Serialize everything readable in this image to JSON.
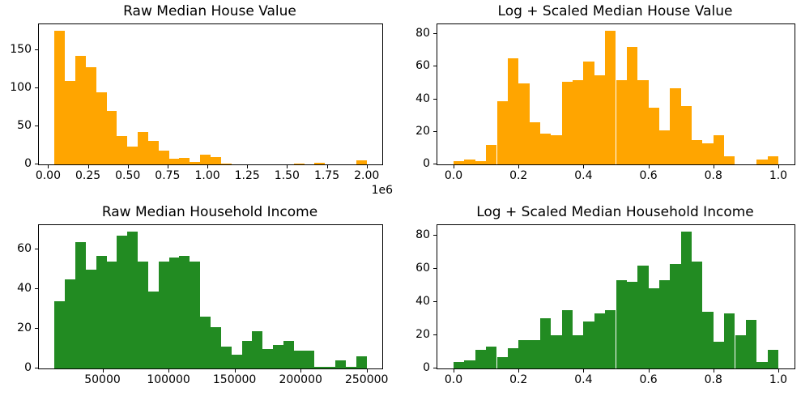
{
  "chart_data": [
    {
      "type": "histogram",
      "title": "Raw Median House Value",
      "color": "#ffa500",
      "n_bins": 30,
      "bin_start": 40000,
      "bin_width": 65333.33,
      "counts": [
        175,
        109,
        142,
        128,
        95,
        70,
        37,
        23,
        43,
        31,
        18,
        7,
        9,
        3,
        13,
        10,
        1,
        0,
        0,
        0,
        0,
        0,
        0,
        1,
        0,
        2,
        0,
        0,
        0,
        5
      ],
      "xlim": [
        -58000,
        2098000
      ],
      "ylim": [
        0,
        183.75
      ],
      "xticks": {
        "values": [
          0,
          250000,
          500000,
          750000,
          1000000,
          1250000,
          1500000,
          1750000,
          2000000
        ],
        "labels": [
          "0.00",
          "0.25",
          "0.50",
          "0.75",
          "1.00",
          "1.25",
          "1.50",
          "1.75",
          "2.00"
        ]
      },
      "yticks": {
        "values": [
          0,
          50,
          100,
          150
        ],
        "labels": [
          "0",
          "50",
          "100",
          "150"
        ]
      },
      "x_offset_text": "1e6",
      "xlabel": "",
      "ylabel": "",
      "grid": false,
      "legend": null
    },
    {
      "type": "histogram",
      "title": "Log + Scaled Median House Value",
      "color": "#ffa500",
      "n_bins": 30,
      "bin_start": 0,
      "bin_width": 0.0333333,
      "counts": [
        2,
        3,
        2,
        12,
        39,
        65,
        50,
        26,
        19,
        18,
        51,
        52,
        63,
        55,
        82,
        52,
        72,
        52,
        35,
        21,
        47,
        36,
        15,
        13,
        18,
        5,
        0,
        0,
        3,
        5
      ],
      "xlim": [
        -0.05,
        1.05
      ],
      "ylim": [
        0,
        86.1
      ],
      "xticks": {
        "values": [
          0,
          0.2,
          0.4,
          0.6,
          0.8,
          1.0
        ],
        "labels": [
          "0.0",
          "0.2",
          "0.4",
          "0.6",
          "0.8",
          "1.0"
        ]
      },
      "yticks": {
        "values": [
          0,
          20,
          40,
          60,
          80
        ],
        "labels": [
          "0",
          "20",
          "40",
          "60",
          "80"
        ]
      },
      "x_offset_text": "",
      "xlabel": "",
      "ylabel": "",
      "grid": false,
      "legend": null
    },
    {
      "type": "histogram",
      "title": "Raw Median Household Income",
      "color": "#228b22",
      "n_bins": 30,
      "bin_start": 13668,
      "bin_width": 7877.73,
      "counts": [
        34,
        45,
        64,
        50,
        57,
        54,
        67,
        69,
        54,
        39,
        54,
        56,
        57,
        54,
        26,
        21,
        11,
        7,
        14,
        19,
        10,
        12,
        14,
        9,
        9,
        1,
        1,
        4,
        1,
        6
      ],
      "xlim": [
        1851,
        261817
      ],
      "ylim": [
        0,
        72.45
      ],
      "xticks": {
        "values": [
          50000,
          100000,
          150000,
          200000,
          250000
        ],
        "labels": [
          "50000",
          "100000",
          "150000",
          "200000",
          "250000"
        ]
      },
      "yticks": {
        "values": [
          0,
          20,
          40,
          60
        ],
        "labels": [
          "0",
          "20",
          "40",
          "60"
        ]
      },
      "x_offset_text": "",
      "xlabel": "",
      "ylabel": "",
      "grid": false,
      "legend": null
    },
    {
      "type": "histogram",
      "title": "Log + Scaled Median Household Income",
      "color": "#228b22",
      "n_bins": 30,
      "bin_start": 0,
      "bin_width": 0.0333333,
      "counts": [
        4,
        5,
        11,
        13,
        7,
        12,
        17,
        17,
        30,
        20,
        35,
        20,
        28,
        33,
        35,
        53,
        52,
        62,
        48,
        53,
        63,
        82,
        64,
        34,
        16,
        33,
        20,
        29,
        4,
        11
      ],
      "xlim": [
        -0.05,
        1.05
      ],
      "ylim": [
        0,
        86.1
      ],
      "xticks": {
        "values": [
          0,
          0.2,
          0.4,
          0.6,
          0.8,
          1.0
        ],
        "labels": [
          "0.0",
          "0.2",
          "0.4",
          "0.6",
          "0.8",
          "1.0"
        ]
      },
      "yticks": {
        "values": [
          0,
          20,
          40,
          60,
          80
        ],
        "labels": [
          "0",
          "20",
          "40",
          "60",
          "80"
        ]
      },
      "x_offset_text": "",
      "xlabel": "",
      "ylabel": "",
      "grid": false,
      "legend": null
    }
  ]
}
